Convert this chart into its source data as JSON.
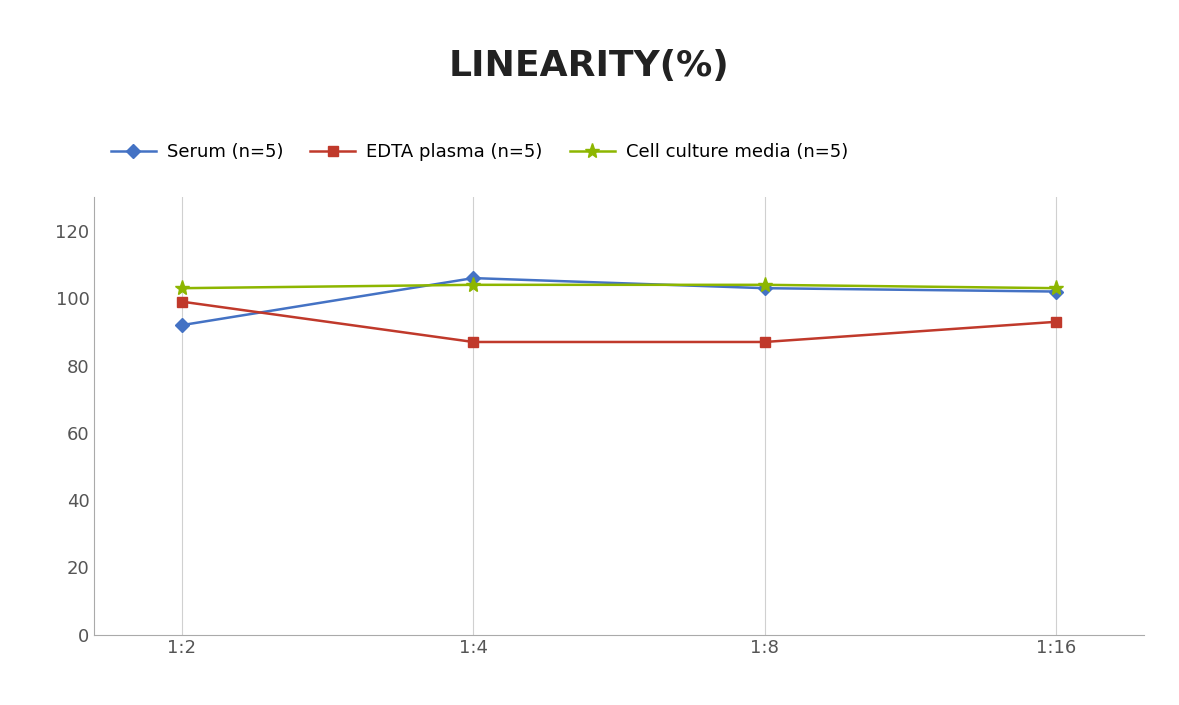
{
  "title": "LINEARITY(%)",
  "x_labels": [
    "1:2",
    "1:4",
    "1:8",
    "1:16"
  ],
  "series": [
    {
      "label": "Serum (n=5)",
      "values": [
        92,
        106,
        103,
        102
      ],
      "color": "#4472C4",
      "marker": "D",
      "linewidth": 1.8,
      "markersize": 7
    },
    {
      "label": "EDTA plasma (n=5)",
      "values": [
        99,
        87,
        87,
        93
      ],
      "color": "#C0392B",
      "marker": "s",
      "linewidth": 1.8,
      "markersize": 7
    },
    {
      "label": "Cell culture media (n=5)",
      "values": [
        103,
        104,
        104,
        103
      ],
      "color": "#8DB600",
      "marker": "*",
      "linewidth": 1.8,
      "markersize": 11
    }
  ],
  "ylim": [
    0,
    130
  ],
  "yticks": [
    0,
    20,
    40,
    60,
    80,
    100,
    120
  ],
  "background_color": "#ffffff",
  "grid_color": "#d0d0d0",
  "title_fontsize": 26,
  "legend_fontsize": 13,
  "tick_fontsize": 13
}
